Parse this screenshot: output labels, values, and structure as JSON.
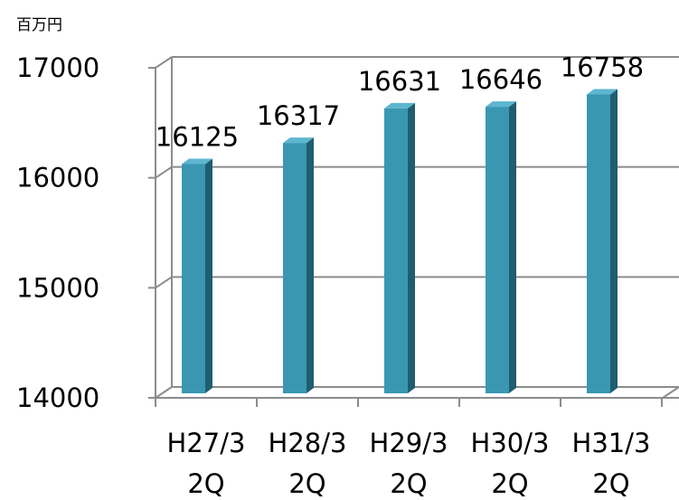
{
  "chart_data": {
    "type": "bar",
    "unit_label": "百万円",
    "categories": [
      [
        "H27/3",
        "2Q"
      ],
      [
        "H28/3",
        "2Q"
      ],
      [
        "H29/3",
        "2Q"
      ],
      [
        "H30/3",
        "2Q"
      ],
      [
        "H31/3",
        "2Q"
      ]
    ],
    "values": [
      16125,
      16317,
      16631,
      16646,
      16758
    ],
    "ylim": [
      14000,
      17000
    ],
    "yticks": [
      14000,
      15000,
      16000,
      17000
    ],
    "grid": true,
    "style": "3d-column",
    "colors": {
      "bar_front": "#3a97b2",
      "bar_side": "#1f5d70",
      "bar_top": "#5cb6cf",
      "grid": "#8c8c8c",
      "axis": "#8c8c8c"
    }
  }
}
